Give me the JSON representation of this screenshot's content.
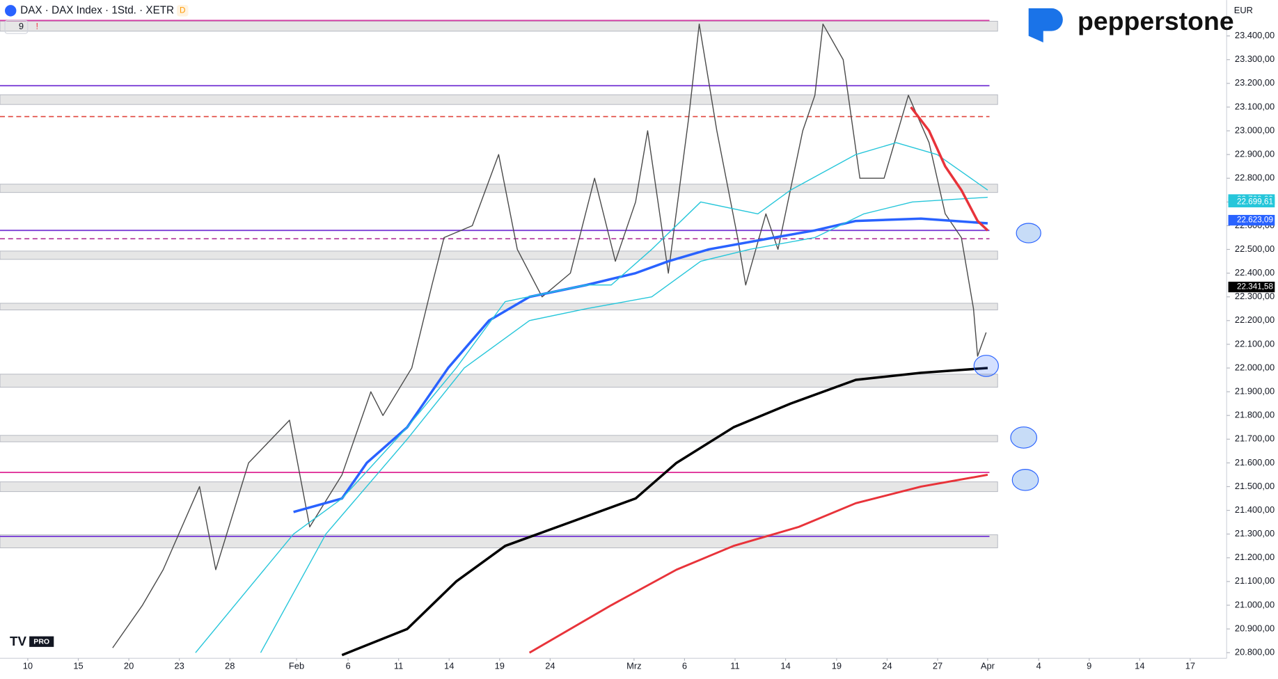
{
  "chart_data": {
    "type": "line",
    "header": {
      "symbol": "DAX · DAX Index · 1Std. · XETR",
      "badge": "D",
      "indicators": "9",
      "currency": "EUR",
      "brand": "pepperstone",
      "badge2": "PRO"
    },
    "xlim": [
      0,
      24.2
    ],
    "ylim": [
      20735,
      23551
    ],
    "xticks": [
      {
        "value": 0.55,
        "label": "10"
      },
      {
        "value": 1.55,
        "label": "15"
      },
      {
        "value": 2.55,
        "label": "20"
      },
      {
        "value": 3.55,
        "label": "23"
      },
      {
        "value": 4.55,
        "label": "28"
      },
      {
        "value": 5.87,
        "label": "Feb"
      },
      {
        "value": 6.89,
        "label": "6"
      },
      {
        "value": 7.89,
        "label": "11"
      },
      {
        "value": 8.89,
        "label": "14"
      },
      {
        "value": 9.89,
        "label": "19"
      },
      {
        "value": 10.89,
        "label": "24"
      },
      {
        "value": 12.55,
        "label": "Mrz"
      },
      {
        "value": 13.55,
        "label": "6"
      },
      {
        "value": 14.55,
        "label": "11"
      },
      {
        "value": 15.55,
        "label": "14"
      },
      {
        "value": 16.56,
        "label": "19"
      },
      {
        "value": 17.56,
        "label": "24"
      },
      {
        "value": 18.56,
        "label": "27"
      },
      {
        "value": 19.55,
        "label": "Apr"
      },
      {
        "value": 20.56,
        "label": "4"
      },
      {
        "value": 21.56,
        "label": "9"
      },
      {
        "value": 22.56,
        "label": "14"
      },
      {
        "value": 23.56,
        "label": "17"
      }
    ],
    "yticks": [
      {
        "value": 23400,
        "label": "23.400,00"
      },
      {
        "value": 23300,
        "label": "23.300,00"
      },
      {
        "value": 23200,
        "label": "23.200,00"
      },
      {
        "value": 23100,
        "label": "23.100,00"
      },
      {
        "value": 23000,
        "label": "23.000,00"
      },
      {
        "value": 22900,
        "label": "22.900,00"
      },
      {
        "value": 22800,
        "label": "22.800,00"
      },
      {
        "value": 22700,
        "label": "22.700,00"
      },
      {
        "value": 22600,
        "label": "22.600,00"
      },
      {
        "value": 22500,
        "label": "22.500,00"
      },
      {
        "value": 22400,
        "label": "22.400,00"
      },
      {
        "value": 22300,
        "label": "22.300,00"
      },
      {
        "value": 22200,
        "label": "22.200,00"
      },
      {
        "value": 22100,
        "label": "22.100,00"
      },
      {
        "value": 22000,
        "label": "22.000,00"
      },
      {
        "value": 21900,
        "label": "21.900,00"
      },
      {
        "value": 21800,
        "label": "21.800,00"
      },
      {
        "value": 21700,
        "label": "21.700,00"
      },
      {
        "value": 21600,
        "label": "21.600,00"
      },
      {
        "value": 21500,
        "label": "21.500,00"
      },
      {
        "value": 21400,
        "label": "21.400,00"
      },
      {
        "value": 21300,
        "label": "21.300,00"
      },
      {
        "value": 21200,
        "label": "21.200,00"
      },
      {
        "value": 21100,
        "label": "21.100,00"
      },
      {
        "value": 21000,
        "label": "21.000,00"
      },
      {
        "value": 20900,
        "label": "20.900,00"
      },
      {
        "value": 20800,
        "label": "20.800,00"
      }
    ],
    "zones": [
      [
        23420,
        23462
      ],
      [
        23111,
        23152
      ],
      [
        22740,
        22775
      ],
      [
        22458,
        22493
      ],
      [
        22245,
        22273
      ],
      [
        21919,
        21974
      ],
      [
        21689,
        21716
      ],
      [
        21479,
        21520
      ],
      [
        21242,
        21297
      ]
    ],
    "levels": [
      {
        "value": 23465,
        "color": "#d63fa6",
        "style": "solid"
      },
      {
        "value": 23190,
        "color": "#7b3fd6",
        "style": "solid"
      },
      {
        "value": 23060,
        "color": "#e0453c",
        "style": "dashed"
      },
      {
        "value": 22580,
        "color": "#7b3fd6",
        "style": "solid"
      },
      {
        "value": 22545,
        "color": "#b0329a",
        "style": "dashed"
      },
      {
        "value": 21560,
        "color": "#e0339a",
        "style": "solid"
      },
      {
        "value": 21290,
        "color": "#7b3fd6",
        "style": "solid"
      }
    ],
    "series": [
      {
        "color": "#4a4a4a",
        "width": 1.2,
        "x": [
          2.23,
          2.82,
          3.23,
          3.95,
          4.27,
          4.92,
          5.73,
          6.13,
          6.77,
          7.34,
          7.58,
          8.15,
          8.55,
          8.79,
          9.35,
          9.87,
          10.24,
          10.73,
          11.29,
          11.77,
          12.18,
          12.58,
          12.82,
          13.23,
          13.63,
          13.84,
          14.19,
          14.6,
          14.76,
          15.16,
          15.4,
          15.89,
          16.13,
          16.29,
          16.69,
          17.02,
          17.5,
          17.98,
          18.39,
          18.71,
          19.03,
          19.27,
          19.35,
          19.52
        ],
        "values": [
          20820,
          21000,
          21150,
          21500,
          21150,
          21600,
          21780,
          21330,
          21550,
          21900,
          21800,
          22000,
          22350,
          22550,
          22600,
          22900,
          22500,
          22300,
          22400,
          22800,
          22450,
          22700,
          23000,
          22400,
          23050,
          23450,
          23000,
          22550,
          22350,
          22650,
          22500,
          23000,
          23150,
          23450,
          23300,
          22800,
          22800,
          23150,
          22950,
          22650,
          22550,
          22250,
          22050,
          22150
        ]
      },
      {
        "color": "#000000",
        "width": 3,
        "x": [
          6.77,
          8.06,
          9.03,
          10.0,
          11.29,
          12.58,
          13.39,
          14.52,
          15.65,
          16.94,
          18.23,
          19.55
        ],
        "values": [
          20790,
          20900,
          21100,
          21250,
          21350,
          21450,
          21600,
          21750,
          21850,
          21950,
          21980,
          22000
        ]
      },
      {
        "color": "#e8333a",
        "width": 2.5,
        "x": [
          10.48,
          12.1,
          13.39,
          14.52,
          15.81,
          16.94,
          18.23,
          19.55
        ],
        "values": [
          20800,
          21000,
          21150,
          21250,
          21330,
          21430,
          21500,
          21550
        ]
      },
      {
        "color": "#2962ff",
        "width": 3,
        "x": [
          5.81,
          6.77,
          7.26,
          8.06,
          8.87,
          9.68,
          10.48,
          11.61,
          12.58,
          13.23,
          14.03,
          15.32,
          16.13,
          16.94,
          18.23,
          19.55
        ],
        "values": [
          21393,
          21450,
          21600,
          21750,
          22000,
          22200,
          22300,
          22350,
          22400,
          22450,
          22500,
          22550,
          22580,
          22620,
          22630,
          22610
        ]
      },
      {
        "color": "#26c6da",
        "width": 1.2,
        "x": [
          3.87,
          4.84,
          5.81,
          6.77,
          8.06,
          9.03,
          10.0,
          11.61,
          12.1,
          12.9,
          13.87,
          15.0,
          15.65,
          16.94,
          17.74,
          18.55,
          19.55
        ],
        "values": [
          20800,
          21050,
          21300,
          21450,
          21750,
          22000,
          22280,
          22350,
          22350,
          22500,
          22700,
          22650,
          22750,
          22900,
          22950,
          22900,
          22750
        ]
      },
      {
        "color": "#26c6da",
        "width": 1.2,
        "x": [
          5.16,
          6.45,
          8.06,
          9.19,
          10.48,
          11.61,
          12.9,
          13.87,
          14.84,
          16.13,
          17.1,
          18.06,
          19.55
        ],
        "values": [
          20800,
          21300,
          21700,
          22000,
          22200,
          22250,
          22300,
          22450,
          22500,
          22550,
          22650,
          22700,
          22720
        ]
      },
      {
        "color": "#e8333a",
        "width": 3,
        "x": [
          18.03,
          18.39,
          18.71,
          19.03,
          19.35,
          19.55
        ],
        "values": [
          23100,
          23000,
          22850,
          22750,
          22620,
          22580
        ]
      }
    ],
    "price_labels": {
      "values": [
        22709.99,
        22699.61,
        22623.09,
        22341.58
      ],
      "value_labels": [
        "22.709,99",
        "22.699,61",
        "22.623,09",
        "22.341,58"
      ],
      "colors": [
        "#26c6da",
        "#26c6da",
        "#2962ff",
        "#000000"
      ]
    }
  }
}
